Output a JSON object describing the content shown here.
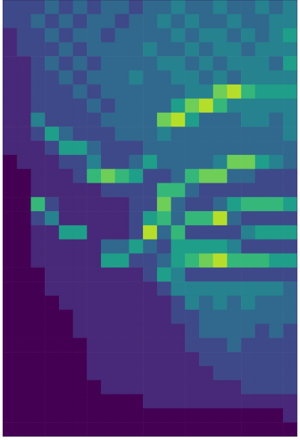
{
  "chart_data": {
    "type": "heatmap",
    "tick_labels": false,
    "grid": false,
    "zlim": [
      0,
      9
    ],
    "cells": [
      [
        2,
        2,
        2,
        3,
        2,
        3,
        2,
        3,
        3,
        2,
        3,
        3,
        4,
        3,
        3,
        4,
        3,
        3,
        4,
        3,
        4
      ],
      [
        2,
        2,
        3,
        2,
        3,
        2,
        3,
        3,
        2,
        3,
        3,
        4,
        3,
        4,
        3,
        3,
        4,
        3,
        3,
        4,
        4
      ],
      [
        1,
        2,
        2,
        3,
        2,
        3,
        3,
        2,
        3,
        3,
        3,
        3,
        4,
        3,
        4,
        4,
        3,
        4,
        3,
        4,
        5
      ],
      [
        1,
        2,
        2,
        2,
        3,
        2,
        3,
        3,
        3,
        3,
        4,
        3,
        3,
        4,
        3,
        4,
        4,
        3,
        4,
        4,
        4
      ],
      [
        1,
        1,
        2,
        3,
        2,
        3,
        2,
        3,
        3,
        3,
        3,
        4,
        4,
        3,
        4,
        3,
        4,
        4,
        4,
        3,
        5
      ],
      [
        1,
        1,
        2,
        2,
        3,
        2,
        3,
        3,
        3,
        4,
        3,
        3,
        4,
        4,
        3,
        4,
        3,
        4,
        4,
        4,
        4
      ],
      [
        1,
        1,
        2,
        2,
        2,
        3,
        2,
        3,
        3,
        3,
        3,
        3,
        3,
        4,
        4,
        7,
        8,
        6,
        5,
        5,
        5
      ],
      [
        1,
        1,
        2,
        2,
        2,
        2,
        3,
        2,
        3,
        3,
        3,
        3,
        5,
        7,
        8,
        6,
        4,
        4,
        4,
        4,
        4
      ],
      [
        1,
        1,
        4,
        2,
        2,
        2,
        2,
        3,
        3,
        3,
        3,
        7,
        8,
        5,
        3,
        3,
        3,
        4,
        4,
        3,
        4
      ],
      [
        1,
        1,
        2,
        5,
        3,
        2,
        2,
        2,
        3,
        3,
        3,
        4,
        3,
        3,
        3,
        3,
        3,
        3,
        3,
        3,
        4
      ],
      [
        1,
        1,
        1,
        2,
        5,
        5,
        3,
        2,
        2,
        2,
        3,
        3,
        3,
        3,
        3,
        3,
        3,
        3,
        3,
        3,
        3
      ],
      [
        0,
        1,
        1,
        1,
        2,
        2,
        4,
        2,
        2,
        3,
        5,
        3,
        3,
        3,
        3,
        4,
        7,
        7,
        5,
        4,
        3
      ],
      [
        0,
        0,
        1,
        1,
        1,
        2,
        6,
        7,
        6,
        5,
        2,
        2,
        3,
        6,
        7,
        7,
        3,
        3,
        2,
        2,
        2
      ],
      [
        0,
        0,
        1,
        1,
        1,
        1,
        1,
        2,
        2,
        2,
        2,
        6,
        6,
        3,
        2,
        2,
        2,
        2,
        2,
        2,
        2
      ],
      [
        0,
        0,
        6,
        2,
        1,
        1,
        1,
        1,
        1,
        2,
        2,
        7,
        3,
        2,
        2,
        3,
        5,
        6,
        6,
        6,
        5
      ],
      [
        0,
        0,
        2,
        4,
        1,
        1,
        1,
        1,
        1,
        2,
        5,
        6,
        3,
        6,
        6,
        8,
        3,
        2,
        2,
        2,
        2
      ],
      [
        0,
        0,
        1,
        1,
        5,
        5,
        1,
        1,
        1,
        2,
        8,
        3,
        6,
        2,
        2,
        2,
        2,
        4,
        5,
        5,
        5
      ],
      [
        0,
        0,
        1,
        1,
        1,
        1,
        1,
        3,
        3,
        5,
        3,
        2,
        5,
        5,
        5,
        5,
        4,
        2,
        2,
        2,
        2
      ],
      [
        0,
        0,
        1,
        1,
        1,
        1,
        1,
        5,
        5,
        2,
        2,
        3,
        5,
        6,
        7,
        8,
        6,
        6,
        6,
        5,
        5
      ],
      [
        0,
        0,
        0,
        1,
        1,
        1,
        1,
        1,
        1,
        1,
        2,
        5,
        4,
        2,
        2,
        2,
        2,
        2,
        2,
        2,
        2
      ],
      [
        0,
        0,
        0,
        1,
        1,
        1,
        1,
        1,
        1,
        1,
        1,
        2,
        4,
        4,
        4,
        4,
        4,
        4,
        4,
        4,
        3
      ],
      [
        0,
        0,
        0,
        0,
        1,
        1,
        1,
        1,
        1,
        1,
        1,
        1,
        2,
        4,
        3,
        4,
        3,
        4,
        3,
        3,
        3
      ],
      [
        0,
        0,
        0,
        0,
        0,
        1,
        1,
        1,
        1,
        1,
        1,
        1,
        2,
        2,
        3,
        3,
        3,
        3,
        3,
        3,
        3
      ],
      [
        0,
        0,
        0,
        0,
        0,
        1,
        1,
        1,
        1,
        1,
        1,
        1,
        1,
        2,
        3,
        3,
        3,
        3,
        2,
        3,
        2
      ],
      [
        0,
        0,
        0,
        0,
        0,
        0,
        1,
        1,
        1,
        1,
        1,
        1,
        1,
        2,
        2,
        2,
        3,
        2,
        2,
        2,
        2
      ],
      [
        0,
        0,
        0,
        0,
        0,
        0,
        1,
        1,
        1,
        1,
        1,
        1,
        1,
        1,
        2,
        2,
        2,
        2,
        2,
        2,
        2
      ],
      [
        0,
        0,
        0,
        0,
        0,
        0,
        1,
        1,
        1,
        1,
        1,
        1,
        1,
        1,
        1,
        2,
        2,
        2,
        2,
        2,
        2
      ],
      [
        0,
        0,
        0,
        0,
        0,
        0,
        0,
        1,
        1,
        1,
        1,
        1,
        1,
        1,
        1,
        1,
        1,
        2,
        2,
        2,
        2
      ],
      [
        0,
        0,
        0,
        0,
        0,
        0,
        0,
        0,
        0,
        0,
        1,
        1,
        1,
        1,
        1,
        1,
        1,
        1,
        1,
        1,
        1
      ],
      [
        0,
        0,
        0,
        0,
        0,
        0,
        0,
        0,
        0,
        0,
        0,
        0,
        0,
        0,
        0,
        0,
        0,
        0,
        0,
        0,
        1
      ],
      [
        0,
        0,
        0,
        0,
        0,
        0,
        0,
        0,
        0,
        0,
        0,
        0,
        0,
        0,
        0,
        0,
        0,
        0,
        0,
        0,
        0
      ]
    ]
  }
}
